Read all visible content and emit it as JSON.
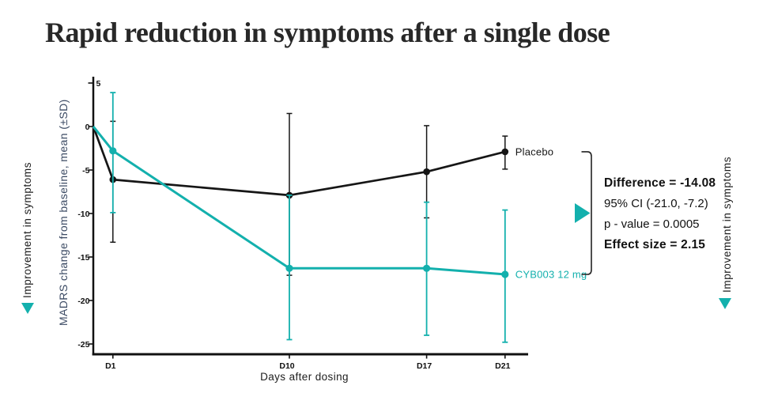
{
  "title": "Rapid reduction in symptoms after a single dose",
  "left_panel": {
    "improvement_label": "Improvement in symptoms"
  },
  "right_panel": {
    "improvement_label": "Improvement in symptoms"
  },
  "stats": {
    "difference": "Difference = -14.08",
    "ci": "95% CI (-21.0, -7.2)",
    "p_value": "p - value = 0.0005",
    "effect_size": "Effect size = 2.15"
  },
  "colors": {
    "teal": "#13b0ad",
    "line_black": "#161616",
    "axis_black": "#111111",
    "navy_label": "#3b4a63",
    "title_color": "#282828"
  },
  "chart_data": {
    "type": "line",
    "title": "",
    "xlabel": "Days after dosing",
    "ylabel": "MADRS change from baseline, mean (±SD)",
    "x_days": [
      0,
      1,
      10,
      17,
      21
    ],
    "x_tick_days": [
      1,
      10,
      17,
      21
    ],
    "x_tick_labels": [
      "D1",
      "D10",
      "D17",
      "D21"
    ],
    "y_ticks": [
      5,
      0,
      -5,
      -10,
      -15,
      -20,
      -25
    ],
    "ylim": [
      -26.2,
      5.6
    ],
    "grid": false,
    "legend_position": "line-end-labels",
    "series": [
      {
        "name": "Placebo",
        "color": "#161616",
        "values": [
          0,
          -6.1,
          -7.9,
          -5.2,
          -2.9
        ],
        "err_top": [
          null,
          0.6,
          1.5,
          0.1,
          -1.1
        ],
        "err_bottom": [
          null,
          -13.3,
          -17.1,
          -10.5,
          -4.9
        ]
      },
      {
        "name": "CYB003 12 mg",
        "color": "#13b0ad",
        "values": [
          0,
          -2.8,
          -16.3,
          -16.3,
          -17.0
        ],
        "err_top": [
          null,
          3.9,
          -7.9,
          -8.7,
          -9.6
        ],
        "err_bottom": [
          null,
          -9.9,
          -24.5,
          -24.0,
          -24.8
        ]
      }
    ],
    "annotation_bracket": "between Placebo and CYB003 12 mg end points at D21"
  }
}
